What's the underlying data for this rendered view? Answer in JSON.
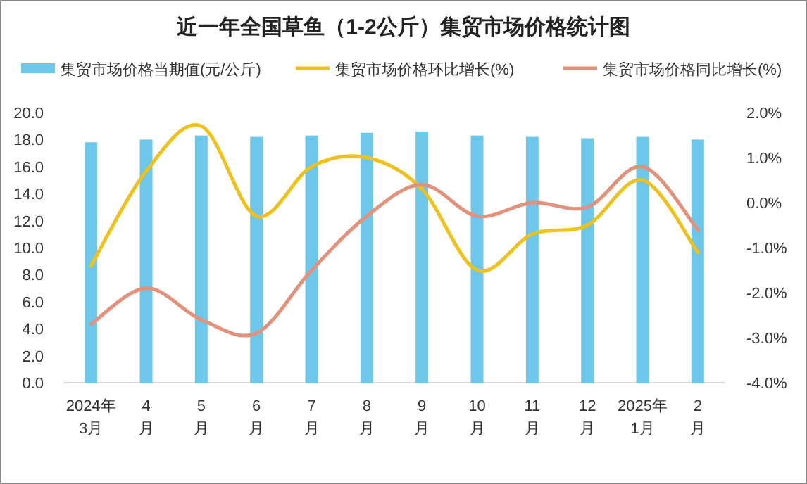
{
  "chart_data": {
    "type": "bar",
    "title": "近一年全国草鱼（1-2公斤）集贸市场价格统计图",
    "categories": [
      "2024年\n3月",
      "4\n月",
      "5\n月",
      "6\n月",
      "7\n月",
      "8\n月",
      "9\n月",
      "10\n月",
      "11\n月",
      "12\n月",
      "2025年\n1月",
      "2\n月"
    ],
    "series": [
      {
        "name": "集贸市场价格当期值(元/公斤)",
        "color": "#6cc7ea",
        "values": [
          17.8,
          18.0,
          18.3,
          18.2,
          18.3,
          18.5,
          18.6,
          18.3,
          18.2,
          18.1,
          18.2,
          18.0
        ]
      },
      {
        "name": "集贸市场价格环比增长(%)",
        "type": "line",
        "axis": "y2",
        "color": "#f0c11a",
        "values": [
          -1.4,
          0.7,
          1.7,
          -0.3,
          0.8,
          1.0,
          0.3,
          -1.5,
          -0.7,
          -0.5,
          0.5,
          -1.1
        ]
      },
      {
        "name": "集贸市场价格同比增长(%)",
        "type": "line",
        "axis": "y2",
        "color": "#e4907a",
        "values": [
          -2.7,
          -1.9,
          -2.6,
          -2.9,
          -1.5,
          -0.3,
          0.4,
          -0.3,
          0.0,
          -0.1,
          0.8,
          -0.6
        ]
      }
    ],
    "ylim": [
      0,
      20
    ],
    "yticks": [
      {
        "value": 0,
        "label": "0.0"
      },
      {
        "value": 2,
        "label": "2.0"
      },
      {
        "value": 4,
        "label": "4.0"
      },
      {
        "value": 6,
        "label": "6.0"
      },
      {
        "value": 8,
        "label": "8.0"
      },
      {
        "value": 10,
        "label": "10.0"
      },
      {
        "value": 12,
        "label": "12.0"
      },
      {
        "value": 14,
        "label": "14.0"
      },
      {
        "value": 16,
        "label": "16.0"
      },
      {
        "value": 18,
        "label": "18.0"
      },
      {
        "value": 20,
        "label": "20.0"
      }
    ],
    "y2lim": [
      -4,
      2
    ],
    "y2ticks": [
      {
        "value": -4,
        "label": "-4.0%"
      },
      {
        "value": -3,
        "label": "-3.0%"
      },
      {
        "value": -2,
        "label": "-2.0%"
      },
      {
        "value": -1,
        "label": "-1.0%"
      },
      {
        "value": 0,
        "label": "0.0%"
      },
      {
        "value": 1,
        "label": "1.0%"
      },
      {
        "value": 2,
        "label": "2.0%"
      }
    ],
    "legend": "top",
    "grid": false
  }
}
